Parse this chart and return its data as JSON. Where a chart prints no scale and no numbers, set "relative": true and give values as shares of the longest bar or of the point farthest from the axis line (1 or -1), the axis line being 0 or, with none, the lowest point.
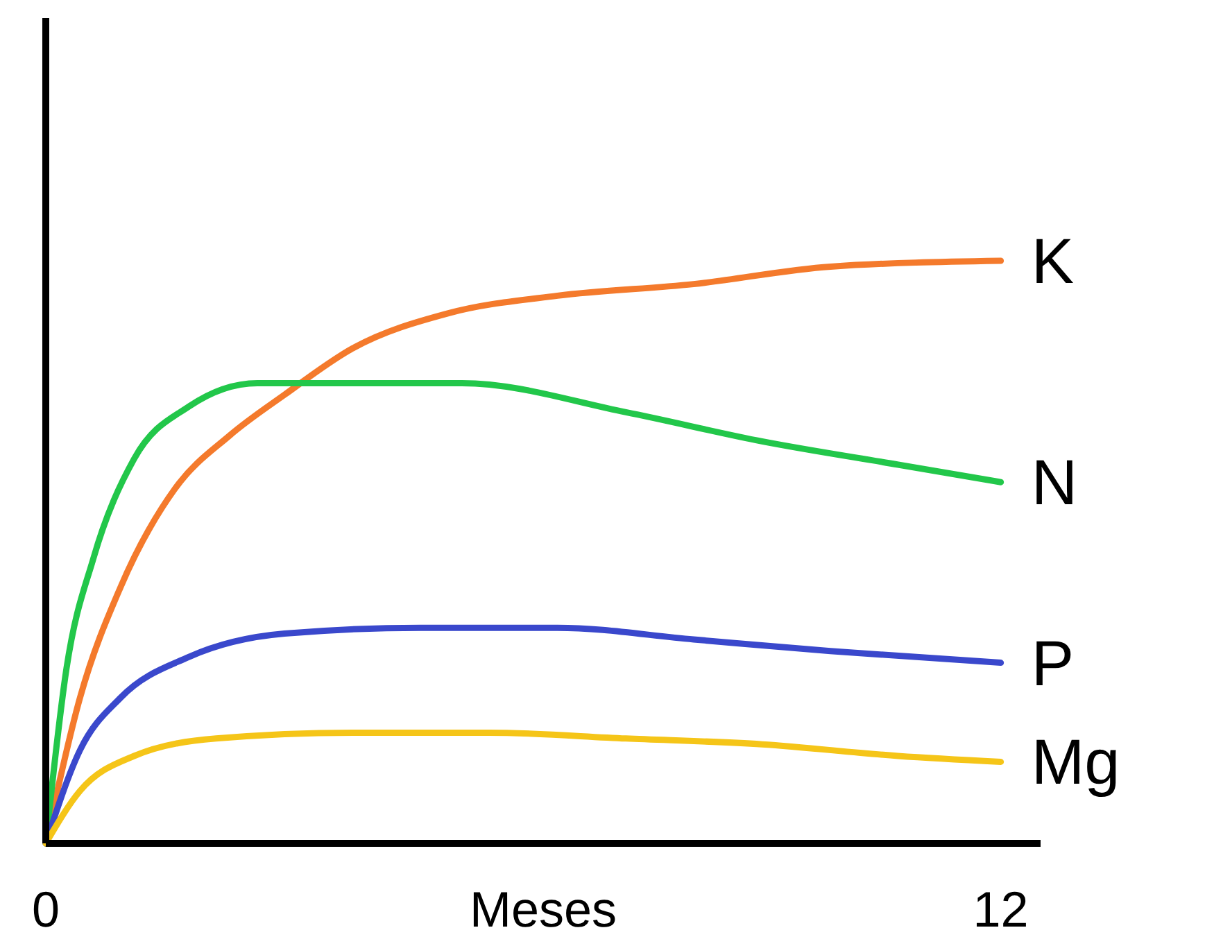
{
  "chart_data": {
    "type": "line",
    "relative": true,
    "xlabel": "Meses",
    "xlim": [
      0,
      12.5
    ],
    "xticks": [
      0,
      12
    ],
    "tick_labels": "x",
    "series": [
      {
        "name": "K",
        "color": "#f47a2c",
        "x": [
          0,
          0.43,
          0.94,
          1.63,
          2.31,
          3.0,
          3.86,
          5.06,
          6.43,
          8.14,
          9.86,
          12
        ],
        "values": [
          0,
          0.25,
          0.44,
          0.61,
          0.7,
          0.77,
          0.85,
          0.91,
          0.94,
          0.96,
          0.99,
          1
        ]
      },
      {
        "name": "N",
        "color": "#22c74a",
        "x": [
          0,
          0.26,
          0.6,
          1.11,
          1.8,
          2.66,
          3.86,
          5.23,
          7.29,
          9.0,
          10.71,
          12
        ],
        "values": [
          0,
          0.3,
          0.49,
          0.66,
          0.75,
          0.79,
          0.79,
          0.79,
          0.74,
          0.69,
          0.65,
          0.62
        ]
      },
      {
        "name": "P",
        "color": "#3a48cc",
        "x": [
          0,
          0.43,
          0.94,
          1.8,
          3.0,
          4.71,
          6.43,
          8.14,
          9.86,
          12
        ],
        "values": [
          0,
          0.16,
          0.25,
          0.32,
          0.36,
          0.37,
          0.37,
          0.35,
          0.33,
          0.31
        ]
      },
      {
        "name": "Mg",
        "color": "#f5c518",
        "x": [
          0,
          0.43,
          1.11,
          2.14,
          3.86,
          5.57,
          7.29,
          9.0,
          10.71,
          12
        ],
        "values": [
          0,
          0.09,
          0.15,
          0.18,
          0.19,
          0.19,
          0.18,
          0.17,
          0.15,
          0.14
        ]
      }
    ]
  }
}
